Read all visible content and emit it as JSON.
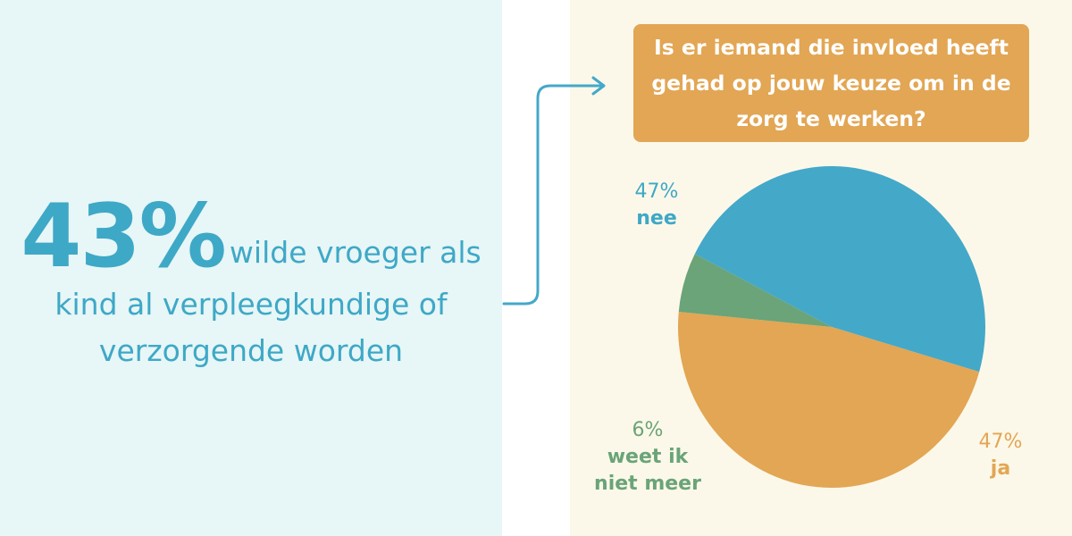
{
  "statistic": {
    "percentage": "43%",
    "text_line1": "wilde vroeger als",
    "text_line2": "kind al verpleegkundige of",
    "text_line3": "verzorgende worden"
  },
  "question": "Is er iemand die invloed heeft gehad op jouw keuze om in de zorg te werken?",
  "colors": {
    "blue": "#44a8c9",
    "orange": "#e2a654",
    "green": "#6aa478",
    "left_bg": "#e7f6f6",
    "right_bg": "#fcf8e9"
  },
  "chart_data": {
    "type": "pie",
    "title": "Is er iemand die invloed heeft gehad op jouw keuze om in de zorg te werken?",
    "slices": [
      {
        "label": "nee",
        "value": 47,
        "value_label": "47%",
        "color": "#44a8c9"
      },
      {
        "label": "ja",
        "value": 47,
        "value_label": "47%",
        "color": "#e2a654"
      },
      {
        "label": "weet ik niet meer",
        "value": 6,
        "value_label": "6%",
        "color": "#6aa478"
      }
    ]
  },
  "labels": {
    "nee_pct": "47%",
    "nee_name": "nee",
    "ja_pct": "47%",
    "ja_name": "ja",
    "weet_pct": "6%",
    "weet_name_line1": "weet ik",
    "weet_name_line2": "niet meer"
  }
}
